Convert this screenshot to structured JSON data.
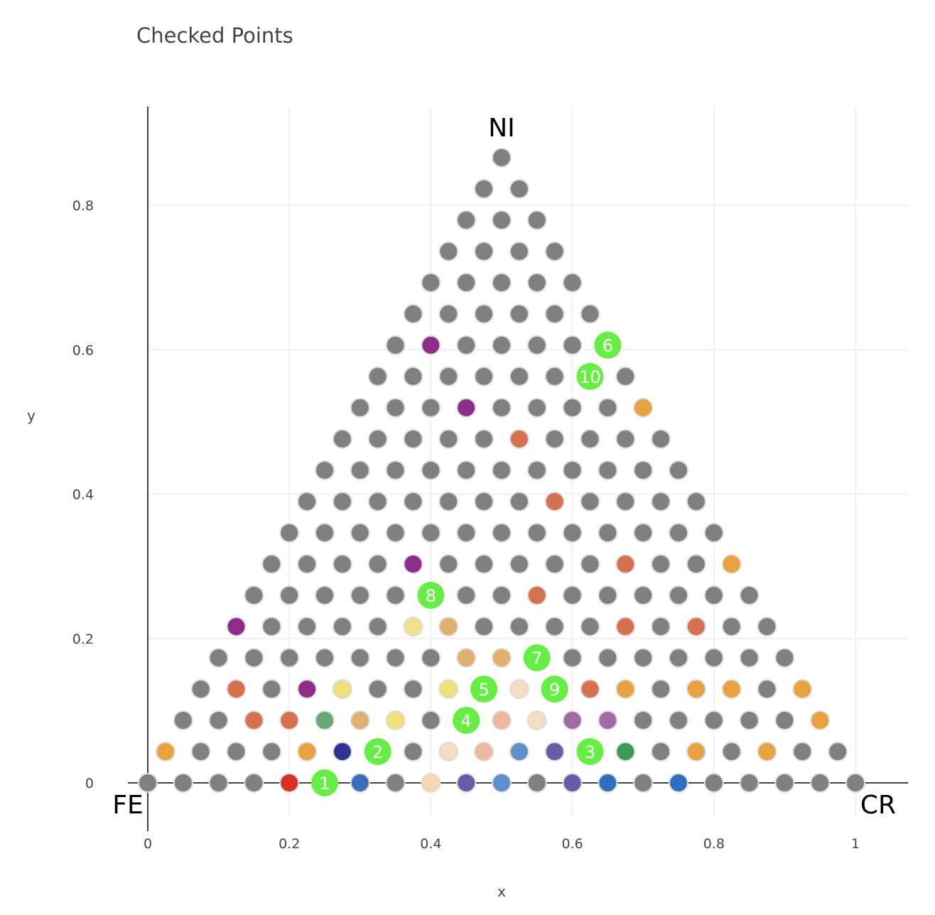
{
  "chart_data": {
    "type": "scatter",
    "title": "Checked Points",
    "xlabel": "x",
    "ylabel": "y",
    "xlim": [
      0,
      1.075
    ],
    "ylim": [
      -0.095,
      0.935
    ],
    "xticks": [
      "0",
      "0.2",
      "0.4",
      "0.6",
      "0.8",
      "1"
    ],
    "xtick_values": [
      0,
      0.2,
      0.4,
      0.6,
      0.8,
      1.0
    ],
    "yticks": [
      "0",
      "0.2",
      "0.4",
      "0.6",
      "0.8"
    ],
    "ytick_values": [
      0,
      0.2,
      0.4,
      0.6,
      0.8
    ],
    "grid": true,
    "corner_labels": {
      "left": "FE",
      "right": "CR",
      "top": "NI"
    },
    "lattice": {
      "divisions": 20,
      "default_color": "#808080"
    },
    "highlighted_points": [
      {
        "x": 0.2,
        "y": 0.0,
        "color": "#d73027"
      },
      {
        "x": 0.3,
        "y": 0.0,
        "color": "#3a6fb8"
      },
      {
        "x": 0.4,
        "y": 0.0,
        "color": "#f6d7b0"
      },
      {
        "x": 0.45,
        "y": 0.0,
        "color": "#6b5aa6"
      },
      {
        "x": 0.5,
        "y": 0.0,
        "color": "#5f8ec9"
      },
      {
        "x": 0.6,
        "y": 0.0,
        "color": "#6b5aa6"
      },
      {
        "x": 0.65,
        "y": 0.0,
        "color": "#2f6fc0"
      },
      {
        "x": 0.75,
        "y": 0.0,
        "color": "#2f6fc0"
      },
      {
        "x": 0.025,
        "y": 0.0433,
        "color": "#e8a23f"
      },
      {
        "x": 0.225,
        "y": 0.0433,
        "color": "#e8a23f"
      },
      {
        "x": 0.275,
        "y": 0.0433,
        "color": "#2e348f"
      },
      {
        "x": 0.425,
        "y": 0.0433,
        "color": "#f6dcc0"
      },
      {
        "x": 0.475,
        "y": 0.0433,
        "color": "#edb8a0"
      },
      {
        "x": 0.525,
        "y": 0.0433,
        "color": "#5f8ec9"
      },
      {
        "x": 0.575,
        "y": 0.0433,
        "color": "#6b5aa6"
      },
      {
        "x": 0.675,
        "y": 0.0433,
        "color": "#3a9a55"
      },
      {
        "x": 0.775,
        "y": 0.0433,
        "color": "#e8a23f"
      },
      {
        "x": 0.875,
        "y": 0.0433,
        "color": "#e8a23f"
      },
      {
        "x": 0.15,
        "y": 0.0866,
        "color": "#d6714f"
      },
      {
        "x": 0.2,
        "y": 0.0866,
        "color": "#d6714f"
      },
      {
        "x": 0.25,
        "y": 0.0866,
        "color": "#68a878"
      },
      {
        "x": 0.3,
        "y": 0.0866,
        "color": "#e0b070"
      },
      {
        "x": 0.35,
        "y": 0.0866,
        "color": "#f0e07a"
      },
      {
        "x": 0.5,
        "y": 0.0866,
        "color": "#edb8a0"
      },
      {
        "x": 0.55,
        "y": 0.0866,
        "color": "#f6dcc0"
      },
      {
        "x": 0.6,
        "y": 0.0866,
        "color": "#a26aa5"
      },
      {
        "x": 0.65,
        "y": 0.0866,
        "color": "#a26aa5"
      },
      {
        "x": 0.95,
        "y": 0.0866,
        "color": "#e8a23f"
      },
      {
        "x": 0.125,
        "y": 0.1299,
        "color": "#d6714f"
      },
      {
        "x": 0.225,
        "y": 0.1299,
        "color": "#8e2c8a"
      },
      {
        "x": 0.275,
        "y": 0.1299,
        "color": "#f0e07a"
      },
      {
        "x": 0.425,
        "y": 0.1299,
        "color": "#f0e07a"
      },
      {
        "x": 0.525,
        "y": 0.1299,
        "color": "#f6dcc0"
      },
      {
        "x": 0.625,
        "y": 0.1299,
        "color": "#d6714f"
      },
      {
        "x": 0.675,
        "y": 0.1299,
        "color": "#e8a23f"
      },
      {
        "x": 0.775,
        "y": 0.1299,
        "color": "#e8a23f"
      },
      {
        "x": 0.825,
        "y": 0.1299,
        "color": "#e8a23f"
      },
      {
        "x": 0.925,
        "y": 0.1299,
        "color": "#e8a23f"
      },
      {
        "x": 0.45,
        "y": 0.1732,
        "color": "#e0b070"
      },
      {
        "x": 0.5,
        "y": 0.1732,
        "color": "#e0b070"
      },
      {
        "x": 0.125,
        "y": 0.2165,
        "color": "#8e2c8a"
      },
      {
        "x": 0.375,
        "y": 0.2165,
        "color": "#f3e18a"
      },
      {
        "x": 0.425,
        "y": 0.2165,
        "color": "#e0b070"
      },
      {
        "x": 0.675,
        "y": 0.2165,
        "color": "#d6714f"
      },
      {
        "x": 0.775,
        "y": 0.2165,
        "color": "#d6714f"
      },
      {
        "x": 0.55,
        "y": 0.2598,
        "color": "#d6714f"
      },
      {
        "x": 0.375,
        "y": 0.3031,
        "color": "#8e2c8a"
      },
      {
        "x": 0.675,
        "y": 0.3031,
        "color": "#d6714f"
      },
      {
        "x": 0.825,
        "y": 0.3031,
        "color": "#e8a23f"
      },
      {
        "x": 0.575,
        "y": 0.3897,
        "color": "#d6714f"
      },
      {
        "x": 0.525,
        "y": 0.4763,
        "color": "#d6714f"
      },
      {
        "x": 0.45,
        "y": 0.5196,
        "color": "#8e2c8a"
      },
      {
        "x": 0.7,
        "y": 0.5196,
        "color": "#e8a23f"
      },
      {
        "x": 0.4,
        "y": 0.6062,
        "color": "#8e2c8a"
      }
    ],
    "numbered_markers": [
      {
        "label": "1",
        "x": 0.25,
        "y": 0.0
      },
      {
        "label": "2",
        "x": 0.325,
        "y": 0.0433
      },
      {
        "label": "3",
        "x": 0.625,
        "y": 0.0433
      },
      {
        "label": "4",
        "x": 0.45,
        "y": 0.0866
      },
      {
        "label": "5",
        "x": 0.475,
        "y": 0.1299
      },
      {
        "label": "6",
        "x": 0.65,
        "y": 0.6062
      },
      {
        "label": "7",
        "x": 0.55,
        "y": 0.1732
      },
      {
        "label": "8",
        "x": 0.4,
        "y": 0.2598
      },
      {
        "label": "9",
        "x": 0.575,
        "y": 0.1299
      },
      {
        "label": "10",
        "x": 0.625,
        "y": 0.5629
      }
    ],
    "marker_color": "#66ee44"
  }
}
